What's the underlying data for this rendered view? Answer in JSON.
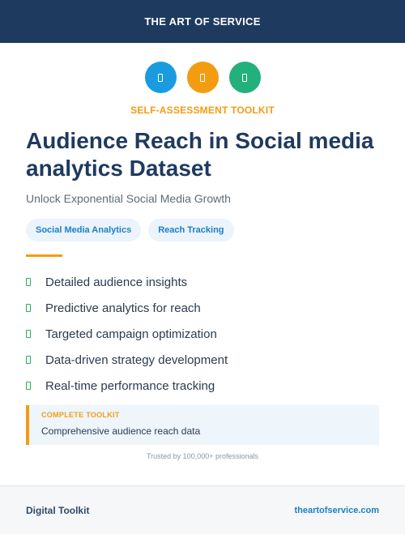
{
  "header": {
    "brand": "THE ART OF SERVICE"
  },
  "icons": [
    {
      "name": "doc-icon",
      "color": "#1a9be0"
    },
    {
      "name": "doc-icon",
      "color": "#f39c12"
    },
    {
      "name": "doc-icon",
      "color": "#23b07d"
    }
  ],
  "eyebrow": "SELF-ASSESSMENT TOOLKIT",
  "title": "Audience Reach in Social media analytics Dataset",
  "subtitle": "Unlock Exponential Social Media Growth",
  "tags": [
    "Social Media Analytics",
    "Reach Tracking"
  ],
  "features": [
    "Detailed audience insights",
    "Predictive analytics for reach",
    "Targeted campaign optimization",
    "Data-driven strategy development",
    "Real-time performance tracking"
  ],
  "callout": {
    "label": "COMPLETE TOOLKIT",
    "text": "Comprehensive audience reach data"
  },
  "trusted": "Trusted by 100,000+ professionals",
  "footer": {
    "left": "Digital Toolkit",
    "right": "theartofservice.com"
  },
  "colors": {
    "navy": "#1f3a5f",
    "accent": "#f39c12",
    "blue": "#1a7fc4",
    "green": "#27ae60"
  }
}
